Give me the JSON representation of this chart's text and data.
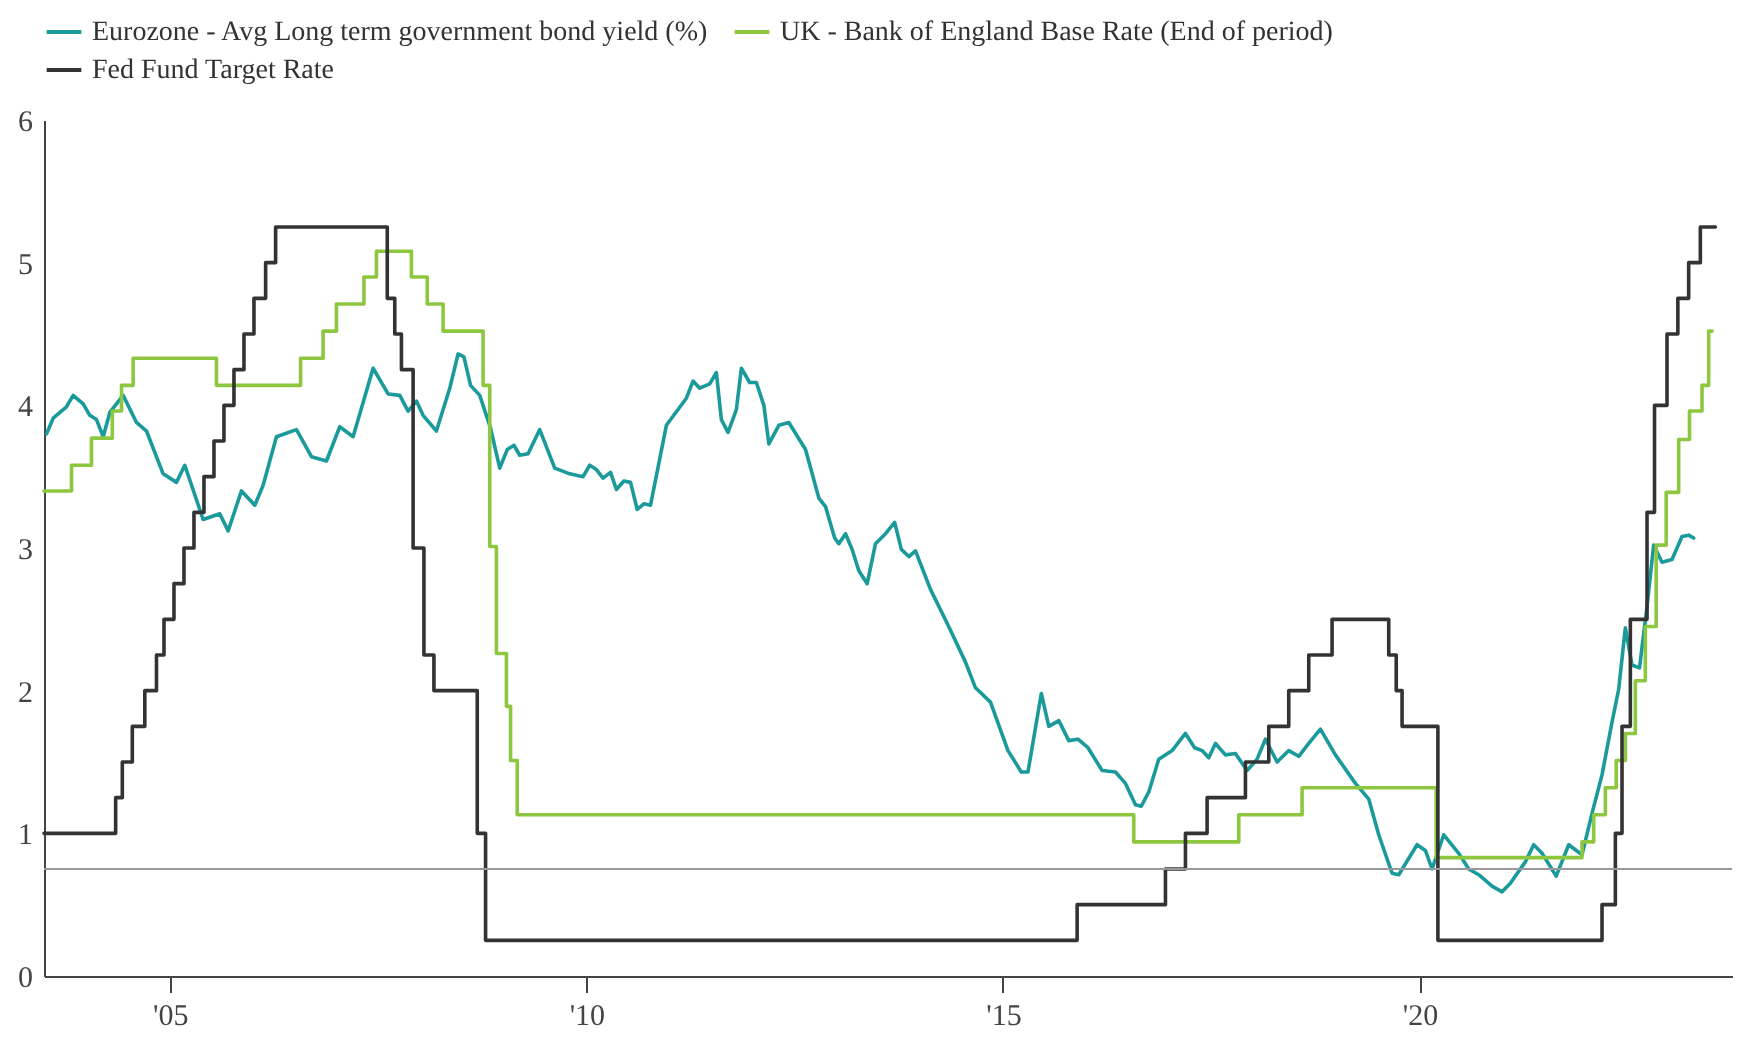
{
  "chart_data": {
    "type": "line",
    "xlim": [
      2003.49,
      2023.75
    ],
    "ylim": [
      0,
      6
    ],
    "xticks": [
      {
        "value": 2005,
        "label": "'05"
      },
      {
        "value": 2010,
        "label": "'10"
      },
      {
        "value": 2015,
        "label": "'15"
      },
      {
        "value": 2020,
        "label": "'20"
      }
    ],
    "yticks": [
      0,
      1,
      2,
      3,
      4,
      5,
      6
    ],
    "legend": "top",
    "ref_lines": [
      {
        "axis": "y",
        "value": 0.75,
        "label": null,
        "color": "#999999"
      }
    ],
    "series": [
      {
        "name": "Eurozone - Avg Long term government bond yield (%)",
        "type": "line",
        "color": "#1a9a9a",
        "x": [
          2003.52,
          2003.6,
          2003.76,
          2003.84,
          2003.96,
          2004.04,
          2004.12,
          2004.2,
          2004.28,
          2004.44,
          2004.6,
          2004.72,
          2004.92,
          2005.08,
          2005.18,
          2005.4,
          2005.6,
          2005.7,
          2005.86,
          2006.02,
          2006.12,
          2006.28,
          2006.52,
          2006.7,
          2006.88,
          2007.04,
          2007.2,
          2007.44,
          2007.62,
          2007.76,
          2007.86,
          2007.96,
          2008.04,
          2008.2,
          2008.36,
          2008.46,
          2008.53,
          2008.61,
          2008.72,
          2008.85,
          2008.96,
          2009.05,
          2009.13,
          2009.2,
          2009.3,
          2009.44,
          2009.62,
          2009.8,
          2009.96,
          2010.04,
          2010.12,
          2010.2,
          2010.29,
          2010.36,
          2010.45,
          2010.53,
          2010.61,
          2010.69,
          2010.77,
          2010.96,
          2011.2,
          2011.28,
          2011.36,
          2011.48,
          2011.56,
          2011.62,
          2011.7,
          2011.8,
          2011.86,
          2011.96,
          2012.04,
          2012.13,
          2012.19,
          2012.31,
          2012.43,
          2012.63,
          2012.79,
          2012.87,
          2012.98,
          2013.03,
          2013.11,
          2013.19,
          2013.27,
          2013.37,
          2013.47,
          2013.59,
          2013.7,
          2013.78,
          2013.87,
          2013.95,
          2014.13,
          2014.34,
          2014.55,
          2014.67,
          2014.85,
          2015.06,
          2015.22,
          2015.3,
          2015.46,
          2015.55,
          2015.67,
          2015.79,
          2015.9,
          2016.02,
          2016.19,
          2016.35,
          2016.47,
          2016.59,
          2016.66,
          2016.75,
          2016.87,
          2017.03,
          2017.19,
          2017.3,
          2017.39,
          2017.47,
          2017.55,
          2017.67,
          2017.79,
          2017.93,
          2018.05,
          2018.15,
          2018.29,
          2018.43,
          2018.55,
          2018.67,
          2018.81,
          2018.99,
          2019.23,
          2019.39,
          2019.51,
          2019.67,
          2019.75,
          2019.97,
          2020.07,
          2020.15,
          2020.29,
          2020.47,
          2020.59,
          2020.71,
          2020.87,
          2020.99,
          2021.09,
          2021.27,
          2021.37,
          2021.47,
          2021.64,
          2021.79,
          2021.95,
          2022.07,
          2022.19,
          2022.31,
          2022.39,
          2022.47,
          2022.55,
          2022.64,
          2022.73,
          2022.81,
          2022.91,
          2023.03,
          2023.15,
          2023.23,
          2023.29
        ],
        "values": [
          3.8,
          3.91,
          3.99,
          4.07,
          4.01,
          3.93,
          3.9,
          3.78,
          3.95,
          4.07,
          3.88,
          3.82,
          3.52,
          3.46,
          3.58,
          3.2,
          3.24,
          3.12,
          3.4,
          3.3,
          3.44,
          3.78,
          3.83,
          3.64,
          3.61,
          3.85,
          3.78,
          4.26,
          4.08,
          4.07,
          3.96,
          4.03,
          3.93,
          3.82,
          4.12,
          4.36,
          4.34,
          4.14,
          4.07,
          3.84,
          3.56,
          3.69,
          3.72,
          3.65,
          3.66,
          3.83,
          3.56,
          3.52,
          3.5,
          3.58,
          3.55,
          3.49,
          3.53,
          3.41,
          3.47,
          3.46,
          3.27,
          3.31,
          3.3,
          3.86,
          4.05,
          4.17,
          4.12,
          4.15,
          4.23,
          3.9,
          3.81,
          3.97,
          4.26,
          4.16,
          4.16,
          4.0,
          3.73,
          3.86,
          3.88,
          3.69,
          3.35,
          3.29,
          3.07,
          3.03,
          3.1,
          2.99,
          2.84,
          2.75,
          3.03,
          3.1,
          3.18,
          2.99,
          2.94,
          2.98,
          2.71,
          2.46,
          2.2,
          2.02,
          1.92,
          1.58,
          1.43,
          1.43,
          1.98,
          1.75,
          1.79,
          1.65,
          1.66,
          1.6,
          1.44,
          1.43,
          1.35,
          1.2,
          1.19,
          1.29,
          1.52,
          1.58,
          1.7,
          1.6,
          1.58,
          1.53,
          1.63,
          1.55,
          1.56,
          1.44,
          1.52,
          1.66,
          1.5,
          1.58,
          1.54,
          1.63,
          1.73,
          1.55,
          1.35,
          1.24,
          0.99,
          0.72,
          0.71,
          0.92,
          0.88,
          0.75,
          0.99,
          0.86,
          0.75,
          0.71,
          0.63,
          0.59,
          0.65,
          0.8,
          0.92,
          0.86,
          0.7,
          0.92,
          0.85,
          1.14,
          1.41,
          1.78,
          2.01,
          2.44,
          2.18,
          2.16,
          2.59,
          3.02,
          2.9,
          2.92,
          3.08,
          3.09,
          3.07
        ]
      },
      {
        "name": "UK - Bank of England Base Rate (End of period)",
        "type": "step",
        "color": "#8dc63f",
        "x": [
          2003.49,
          2003.82,
          2004.06,
          2004.31,
          2004.42,
          2004.56,
          2005.56,
          2006.57,
          2006.84,
          2007.0,
          2007.33,
          2007.48,
          2007.9,
          2008.09,
          2008.28,
          2008.76,
          2008.84,
          2008.92,
          2009.04,
          2009.09,
          2009.17,
          2016.57,
          2017.83,
          2018.59,
          2020.2,
          2021.95,
          2022.09,
          2022.23,
          2022.36,
          2022.47,
          2022.59,
          2022.71,
          2022.84,
          2022.96,
          2023.11,
          2023.24,
          2023.39,
          2023.47,
          2023.51
        ],
        "values": [
          3.4,
          3.58,
          3.77,
          3.96,
          4.14,
          4.33,
          4.14,
          4.33,
          4.52,
          4.71,
          4.9,
          5.08,
          4.9,
          4.71,
          4.52,
          4.14,
          3.01,
          2.26,
          1.89,
          1.51,
          1.13,
          0.94,
          1.13,
          1.32,
          0.83,
          0.94,
          1.13,
          1.32,
          1.51,
          1.7,
          2.07,
          2.45,
          3.02,
          3.39,
          3.76,
          3.96,
          4.14,
          4.52,
          4.52
        ]
      },
      {
        "name": "Fed Fund Target Rate",
        "type": "step",
        "color": "#333333",
        "x": [
          2003.49,
          2004.35,
          2004.43,
          2004.55,
          2004.7,
          2004.84,
          2004.93,
          2005.05,
          2005.17,
          2005.29,
          2005.41,
          2005.53,
          2005.65,
          2005.77,
          2005.89,
          2006.01,
          2006.15,
          2006.27,
          2006.44,
          2007.61,
          2007.7,
          2007.78,
          2007.92,
          2008.05,
          2008.17,
          2008.29,
          2008.69,
          2008.79,
          2008.96,
          2015.89,
          2016.95,
          2017.19,
          2017.45,
          2017.91,
          2018.19,
          2018.43,
          2018.67,
          2018.95,
          2019.55,
          2019.63,
          2019.72,
          2019.79,
          2020.15,
          2020.22,
          2022.19,
          2022.35,
          2022.43,
          2022.53,
          2022.73,
          2022.82,
          2022.97,
          2023.1,
          2023.23,
          2023.37,
          2023.55
        ],
        "values": [
          1.0,
          1.25,
          1.5,
          1.75,
          2.0,
          2.25,
          2.5,
          2.75,
          3.0,
          3.25,
          3.5,
          3.75,
          4.0,
          4.25,
          4.5,
          4.75,
          5.0,
          5.25,
          5.25,
          4.75,
          4.5,
          4.25,
          3.0,
          2.25,
          2.0,
          2.0,
          1.0,
          0.25,
          0.25,
          0.5,
          0.75,
          1.0,
          1.25,
          1.5,
          1.75,
          2.0,
          2.25,
          2.5,
          2.5,
          2.25,
          2.0,
          1.75,
          1.75,
          0.25,
          0.5,
          1.0,
          1.75,
          2.5,
          3.25,
          4.0,
          4.5,
          4.75,
          5.0,
          5.25,
          5.25
        ]
      }
    ]
  }
}
